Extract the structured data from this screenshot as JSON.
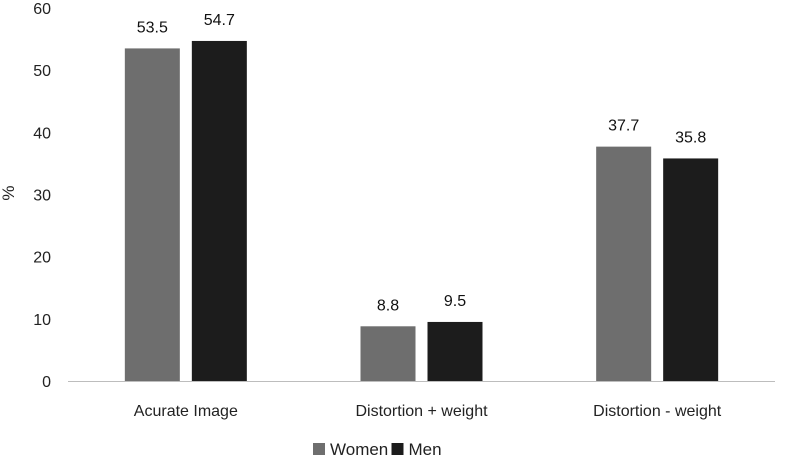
{
  "chart_data": {
    "type": "bar",
    "categories": [
      "Acurate Image",
      "Distortion + weight",
      "Distortion - weight"
    ],
    "series": [
      {
        "name": "Women",
        "values": [
          53.5,
          8.8,
          37.7
        ],
        "color": "#6e6e6e"
      },
      {
        "name": "Men",
        "values": [
          54.7,
          9.5,
          35.8
        ],
        "color": "#1c1c1c"
      }
    ],
    "data_labels": [
      [
        "53.5",
        "8.8",
        "37.7"
      ],
      [
        "54.7",
        "9.5",
        "35.8"
      ]
    ],
    "yticks": [
      0,
      10,
      20,
      30,
      40,
      50,
      60
    ],
    "ylim": [
      0,
      60
    ],
    "ylabel": "%",
    "xlabel": "",
    "title": "",
    "grid": false,
    "legend": "bottom"
  }
}
